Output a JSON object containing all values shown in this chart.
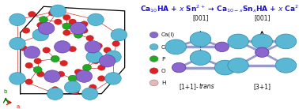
{
  "title_formula": "Ca$_{10}$HA + $x$ Sn$^{2+}$ → Ca$_{10-x}$Sn$_x$HA + $x$ Ca$^{2+}$",
  "title_color": "#1a0fd1",
  "title_fontsize": 6.5,
  "bg_color": "#ffffff",
  "legend_items": [
    {
      "label": "Ca(I)",
      "color": "#8b66cc"
    },
    {
      "label": "Ca(II)",
      "color": "#5bb8d4"
    },
    {
      "label": "P",
      "color": "#22aa22"
    },
    {
      "label": "O",
      "color": "#dd2222"
    },
    {
      "label": "H",
      "color": "#e8b8b8"
    }
  ],
  "label_trans": "[1+1]-trans",
  "label_31": "[3+1]",
  "dir_label": "[001]",
  "ca1_color": "#8b66cc",
  "ca2_color": "#5bb8d4",
  "bond_color": "#9999cc",
  "ca1_edge": "#5533aa",
  "ca2_edge": "#2288aa",
  "crystal_bg": "#ddeeff",
  "axis_color_a": "#cc2200",
  "axis_color_b": "#007700"
}
